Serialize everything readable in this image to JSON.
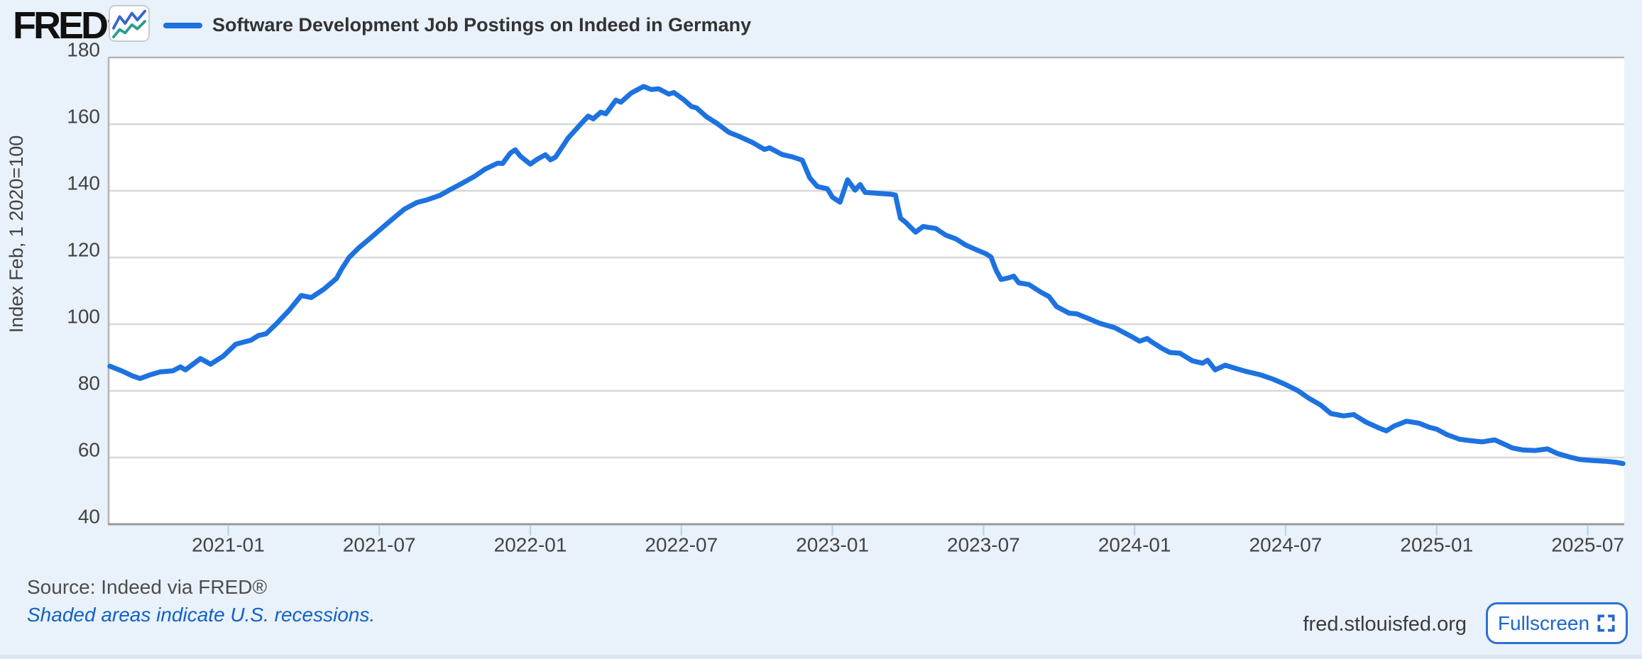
{
  "header": {
    "logo_text": "FRED",
    "logo_registered": "®",
    "logo_icon": "mini-line-chart-icon",
    "series_title": "Software Development Job Postings on Indeed in Germany"
  },
  "footer": {
    "source": "Source: Indeed via FRED®",
    "recession_note": "Shaded areas indicate U.S. recessions.",
    "site": "fred.stlouisfed.org",
    "fullscreen_label": "Fullscreen",
    "fullscreen_icon": "fullscreen-expand-icon"
  },
  "colors": {
    "background": "#e9f1fa",
    "plot_background": "#ffffff",
    "line": "#1d72e0",
    "gridline": "#d8d8d8",
    "axis_border": "#b6b6b6",
    "bottom_axis": "#9a9a9a",
    "tick_mark": "#bdd5ea",
    "axis_text": "#434343",
    "title_text": "#333333",
    "link_blue": "#1262c4",
    "fullscreen_blue": "#2567c9",
    "logo_black": "#111111",
    "icon_blue": "#3566cd",
    "icon_teal": "#2a9d8f"
  },
  "chart_data": {
    "type": "line",
    "title": "Software Development Job Postings on Indeed in Germany",
    "xlabel": "",
    "ylabel": "Index Feb, 1 2020=100",
    "ylim": [
      40,
      180
    ],
    "y_ticks": [
      40,
      60,
      80,
      100,
      120,
      140,
      160,
      180
    ],
    "grid": "horizontal",
    "legend_position": "top-left",
    "x_unit": "months since 2020-08-01",
    "xlim": [
      0.25,
      60.45
    ],
    "x_ticks": [
      {
        "t": 5,
        "label": "2021-01"
      },
      {
        "t": 11,
        "label": "2021-07"
      },
      {
        "t": 17,
        "label": "2022-01"
      },
      {
        "t": 23,
        "label": "2022-07"
      },
      {
        "t": 29,
        "label": "2023-01"
      },
      {
        "t": 35,
        "label": "2023-07"
      },
      {
        "t": 41,
        "label": "2024-01"
      },
      {
        "t": 47,
        "label": "2024-07"
      },
      {
        "t": 53,
        "label": "2025-01"
      },
      {
        "t": 59,
        "label": "2025-07"
      }
    ],
    "series": [
      {
        "name": "Software Development Job Postings on Indeed in Germany",
        "color": "#1d72e0",
        "points": [
          [
            0.3,
            87.4
          ],
          [
            0.8,
            85.9
          ],
          [
            1.2,
            84.5
          ],
          [
            1.5,
            83.7
          ],
          [
            1.9,
            84.8
          ],
          [
            2.3,
            85.7
          ],
          [
            2.8,
            86.0
          ],
          [
            3.1,
            87.2
          ],
          [
            3.3,
            86.3
          ],
          [
            3.9,
            89.7
          ],
          [
            4.3,
            88.0
          ],
          [
            4.8,
            90.4
          ],
          [
            5.3,
            94.0
          ],
          [
            5.6,
            94.6
          ],
          [
            5.9,
            95.2
          ],
          [
            6.2,
            96.6
          ],
          [
            6.5,
            97.1
          ],
          [
            6.9,
            100.0
          ],
          [
            7.4,
            104.0
          ],
          [
            7.9,
            108.6
          ],
          [
            8.3,
            108.0
          ],
          [
            8.8,
            110.5
          ],
          [
            9.3,
            113.7
          ],
          [
            9.5,
            116.5
          ],
          [
            9.8,
            120.0
          ],
          [
            10.2,
            123.0
          ],
          [
            10.6,
            125.5
          ],
          [
            11.1,
            128.8
          ],
          [
            11.6,
            132.0
          ],
          [
            12.0,
            134.5
          ],
          [
            12.5,
            136.5
          ],
          [
            12.9,
            137.3
          ],
          [
            13.4,
            138.6
          ],
          [
            13.8,
            140.3
          ],
          [
            14.3,
            142.3
          ],
          [
            14.8,
            144.4
          ],
          [
            15.2,
            146.5
          ],
          [
            15.7,
            148.3
          ],
          [
            15.9,
            148.2
          ],
          [
            16.2,
            151.3
          ],
          [
            16.4,
            152.3
          ],
          [
            16.6,
            150.4
          ],
          [
            17.0,
            148.0
          ],
          [
            17.3,
            149.6
          ],
          [
            17.6,
            150.8
          ],
          [
            17.8,
            149.3
          ],
          [
            18.0,
            150.1
          ],
          [
            18.5,
            155.8
          ],
          [
            19.0,
            160.0
          ],
          [
            19.3,
            162.4
          ],
          [
            19.5,
            161.6
          ],
          [
            19.8,
            163.6
          ],
          [
            20.0,
            163.1
          ],
          [
            20.4,
            167.2
          ],
          [
            20.6,
            166.6
          ],
          [
            21.0,
            169.3
          ],
          [
            21.5,
            171.3
          ],
          [
            21.8,
            170.4
          ],
          [
            22.1,
            170.6
          ],
          [
            22.5,
            169.0
          ],
          [
            22.7,
            169.5
          ],
          [
            23.1,
            167.3
          ],
          [
            23.4,
            165.3
          ],
          [
            23.6,
            164.9
          ],
          [
            24.0,
            162.2
          ],
          [
            24.4,
            160.3
          ],
          [
            24.9,
            157.5
          ],
          [
            25.3,
            156.3
          ],
          [
            25.8,
            154.6
          ],
          [
            26.3,
            152.4
          ],
          [
            26.5,
            152.9
          ],
          [
            27.0,
            150.9
          ],
          [
            27.4,
            150.2
          ],
          [
            27.8,
            149.2
          ],
          [
            28.1,
            143.9
          ],
          [
            28.4,
            141.3
          ],
          [
            28.8,
            140.6
          ],
          [
            29.0,
            138.1
          ],
          [
            29.3,
            136.6
          ],
          [
            29.6,
            143.3
          ],
          [
            29.9,
            140.2
          ],
          [
            30.1,
            141.9
          ],
          [
            30.3,
            139.5
          ],
          [
            30.7,
            139.3
          ],
          [
            31.3,
            139.0
          ],
          [
            31.5,
            138.7
          ],
          [
            31.7,
            131.8
          ],
          [
            31.9,
            130.6
          ],
          [
            32.3,
            127.6
          ],
          [
            32.6,
            129.3
          ],
          [
            33.1,
            128.7
          ],
          [
            33.5,
            126.7
          ],
          [
            33.9,
            125.6
          ],
          [
            34.3,
            123.7
          ],
          [
            34.6,
            122.7
          ],
          [
            35.1,
            121.1
          ],
          [
            35.3,
            120.1
          ],
          [
            35.5,
            116.2
          ],
          [
            35.7,
            113.4
          ],
          [
            36.0,
            113.9
          ],
          [
            36.2,
            114.4
          ],
          [
            36.4,
            112.4
          ],
          [
            36.8,
            111.9
          ],
          [
            37.3,
            109.5
          ],
          [
            37.6,
            108.3
          ],
          [
            37.9,
            105.3
          ],
          [
            38.4,
            103.3
          ],
          [
            38.7,
            103.1
          ],
          [
            39.2,
            101.6
          ],
          [
            39.6,
            100.3
          ],
          [
            40.2,
            99.0
          ],
          [
            40.9,
            96.2
          ],
          [
            41.2,
            94.9
          ],
          [
            41.5,
            95.7
          ],
          [
            41.7,
            94.6
          ],
          [
            42.1,
            92.7
          ],
          [
            42.4,
            91.5
          ],
          [
            42.8,
            91.3
          ],
          [
            43.3,
            89.0
          ],
          [
            43.7,
            88.3
          ],
          [
            43.9,
            89.2
          ],
          [
            44.2,
            86.3
          ],
          [
            44.6,
            87.7
          ],
          [
            44.9,
            87.0
          ],
          [
            45.4,
            85.9
          ],
          [
            46.0,
            84.8
          ],
          [
            46.5,
            83.5
          ],
          [
            47.0,
            81.9
          ],
          [
            47.5,
            80.0
          ],
          [
            47.9,
            77.9
          ],
          [
            48.4,
            75.7
          ],
          [
            48.8,
            73.2
          ],
          [
            49.3,
            72.5
          ],
          [
            49.7,
            72.9
          ],
          [
            50.2,
            70.6
          ],
          [
            50.7,
            68.9
          ],
          [
            51.0,
            68.0
          ],
          [
            51.3,
            69.4
          ],
          [
            51.8,
            70.9
          ],
          [
            52.3,
            70.3
          ],
          [
            52.7,
            69.1
          ],
          [
            53.0,
            68.5
          ],
          [
            53.4,
            66.9
          ],
          [
            53.9,
            65.5
          ],
          [
            54.3,
            65.1
          ],
          [
            54.8,
            64.7
          ],
          [
            55.3,
            65.3
          ],
          [
            55.8,
            63.6
          ],
          [
            56.0,
            62.9
          ],
          [
            56.4,
            62.3
          ],
          [
            56.9,
            62.1
          ],
          [
            57.4,
            62.6
          ],
          [
            57.8,
            61.2
          ],
          [
            58.3,
            60.1
          ],
          [
            58.7,
            59.4
          ],
          [
            59.2,
            59.1
          ],
          [
            59.7,
            58.9
          ],
          [
            60.1,
            58.6
          ],
          [
            60.4,
            58.2
          ]
        ]
      }
    ]
  }
}
